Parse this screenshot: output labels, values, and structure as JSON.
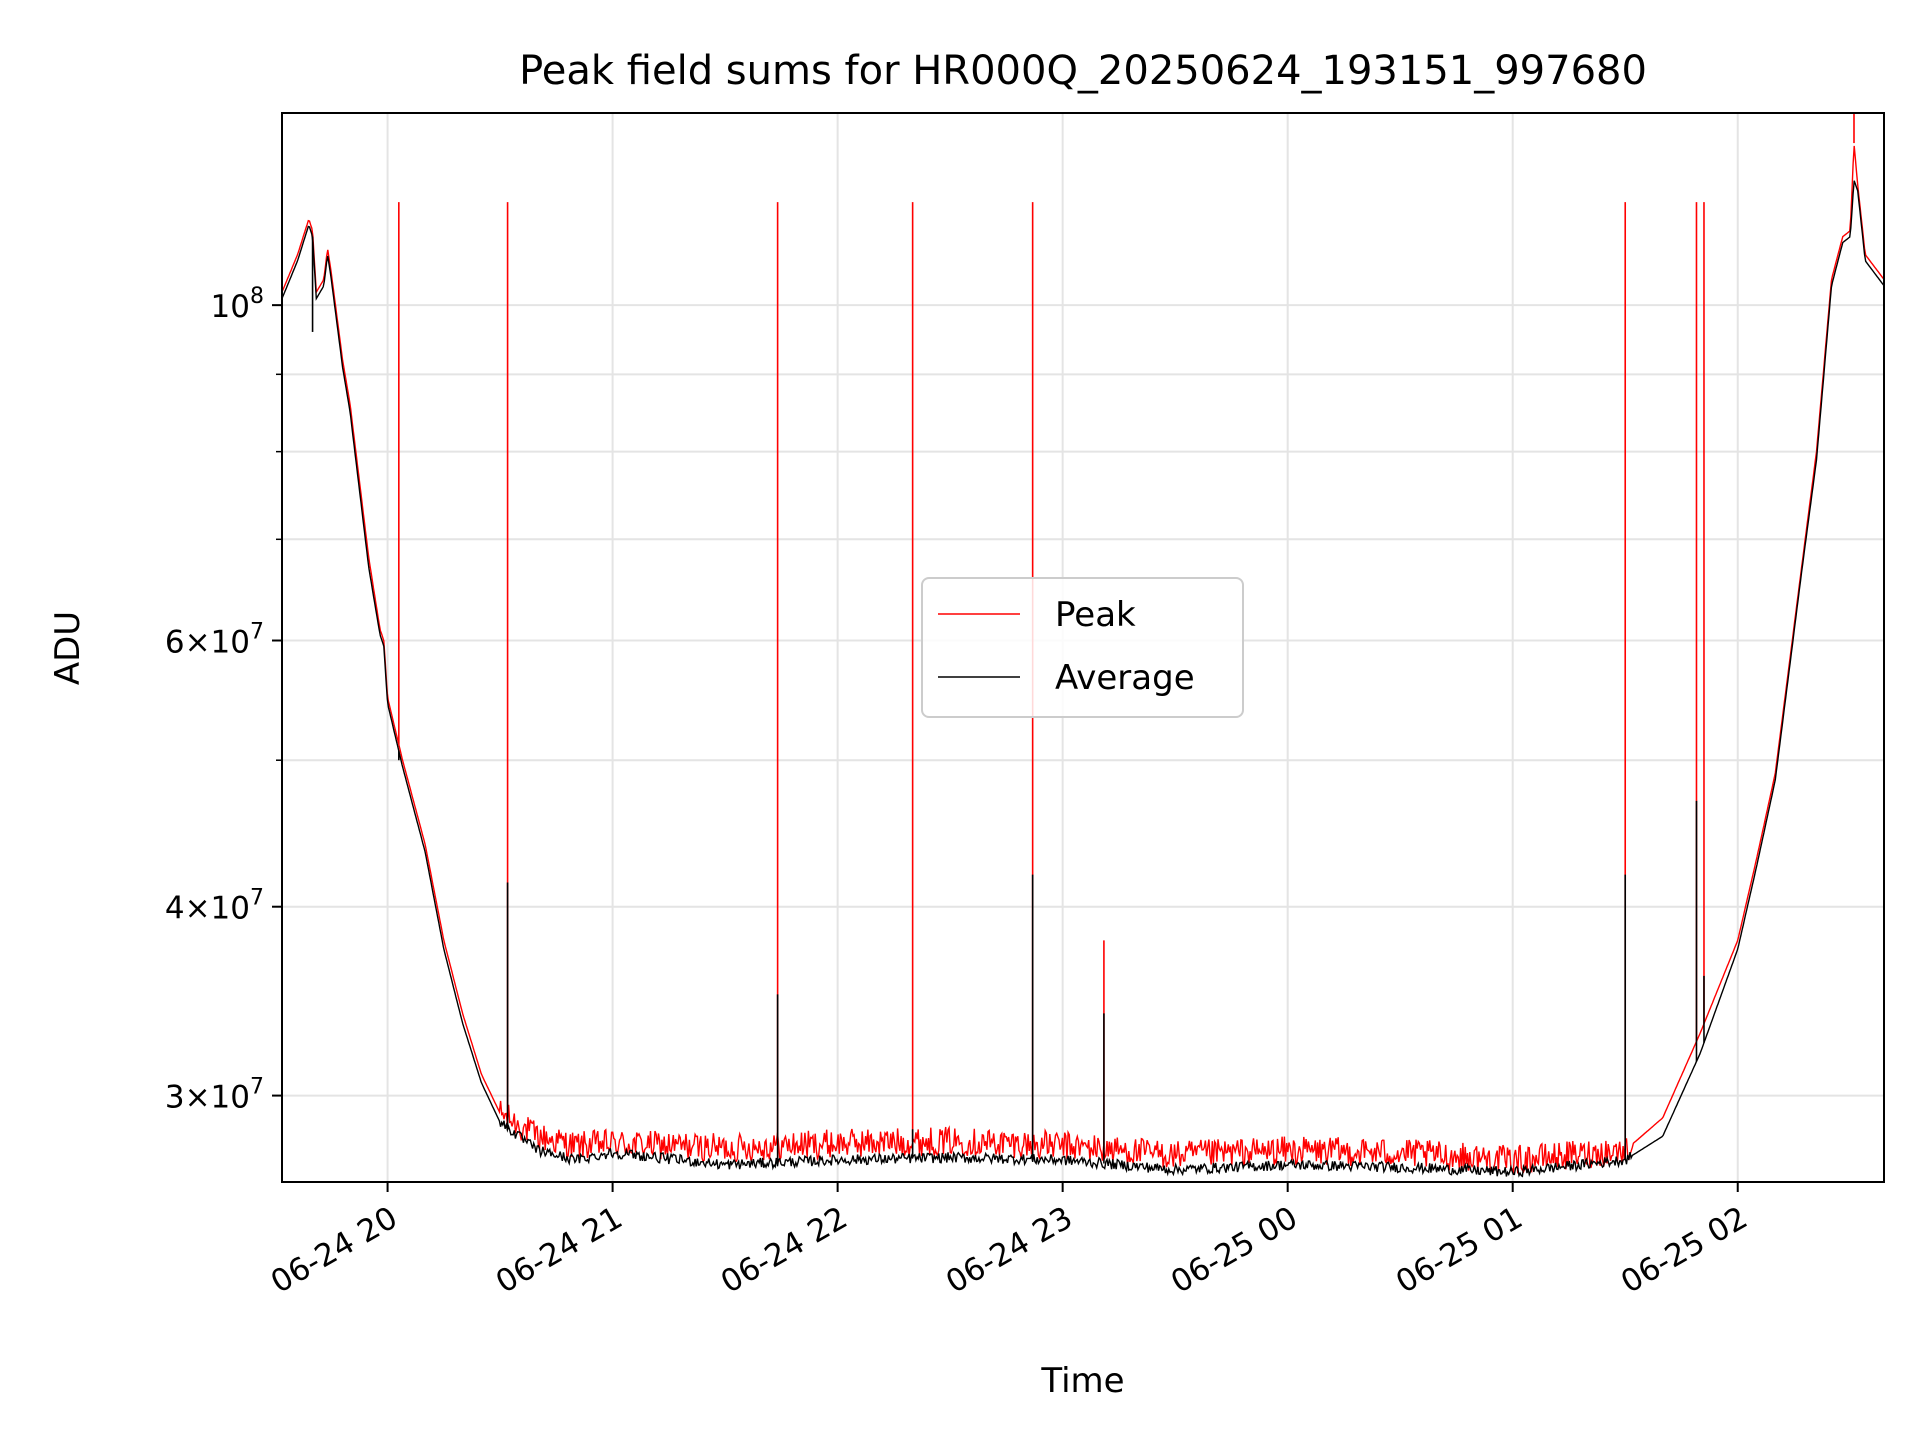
{
  "chart_data": {
    "type": "line",
    "title": "Peak field sums for HR000Q_20250624_193151_997680",
    "xlabel": "Time",
    "ylabel": "ADU",
    "yscale": "log",
    "xlim": [
      "2025-06-24 19:31:51",
      "2025-06-25 02:39"
    ],
    "ylim": [
      26300000,
      134000000
    ],
    "grid": true,
    "legend": "center",
    "x_ticks": [
      {
        "t": "2025-06-24 20:00",
        "label": "06-24 20"
      },
      {
        "t": "2025-06-24 21:00",
        "label": "06-24 21"
      },
      {
        "t": "2025-06-24 22:00",
        "label": "06-24 22"
      },
      {
        "t": "2025-06-24 23:00",
        "label": "06-24 23"
      },
      {
        "t": "2025-06-25 00:00",
        "label": "06-25 00"
      },
      {
        "t": "2025-06-25 01:00",
        "label": "06-25 01"
      },
      {
        "t": "2025-06-25 02:00",
        "label": "06-25 02"
      }
    ],
    "y_ticks": [
      {
        "v": 30000000,
        "base": "3",
        "exp": "7"
      },
      {
        "v": 40000000,
        "base": "4",
        "exp": "7"
      },
      {
        "v": 60000000,
        "base": "6",
        "exp": "7"
      },
      {
        "v": 100000000,
        "base": "",
        "exp": "8"
      }
    ],
    "y_minor": [
      50000000,
      70000000,
      80000000,
      90000000
    ],
    "series": [
      {
        "name": "Peak",
        "color": "#ff0000",
        "points": [
          [
            "2025-06-24 19:31:51",
            102000000
          ],
          [
            "2025-06-24 19:36",
            108000000
          ],
          [
            "2025-06-24 19:39",
            114000000
          ],
          [
            "2025-06-24 19:40",
            112000000
          ],
          [
            "2025-06-24 19:41",
            102000000
          ],
          [
            "2025-06-24 19:43",
            104000000
          ],
          [
            "2025-06-24 19:44",
            109000000
          ],
          [
            "2025-06-24 19:45",
            105000000
          ],
          [
            "2025-06-24 19:48",
            92000000
          ],
          [
            "2025-06-24 19:50",
            86000000
          ],
          [
            "2025-06-24 19:55",
            68000000
          ],
          [
            "2025-06-24 19:58",
            61000000
          ],
          [
            "2025-06-24 19:59",
            60000000
          ],
          [
            "2025-06-24 20:00",
            55000000
          ],
          [
            "2025-06-24 20:04",
            50000000
          ],
          [
            "2025-06-24 20:10",
            44000000
          ],
          [
            "2025-06-24 20:15",
            38000000
          ],
          [
            "2025-06-24 20:20",
            34000000
          ],
          [
            "2025-06-24 20:25",
            31000000
          ],
          [
            "2025-06-24 20:30",
            29200000
          ],
          [
            "2025-06-24 20:40",
            28200000
          ],
          [
            "2025-06-24 20:50",
            27800000
          ],
          [
            "2025-06-24 21:00",
            27900000
          ],
          [
            "2025-06-24 21:30",
            27700000
          ],
          [
            "2025-06-24 22:00",
            27900000
          ],
          [
            "2025-06-24 22:30",
            28000000
          ],
          [
            "2025-06-24 23:00",
            27800000
          ],
          [
            "2025-06-24 23:30",
            27400000
          ],
          [
            "2025-06-25 00:00",
            27600000
          ],
          [
            "2025-06-25 00:30",
            27500000
          ],
          [
            "2025-06-25 01:00",
            27200000
          ],
          [
            "2025-06-25 01:30",
            27600000
          ],
          [
            "2025-06-25 01:40",
            29000000
          ],
          [
            "2025-06-25 01:50",
            33000000
          ],
          [
            "2025-06-25 02:00",
            38000000
          ],
          [
            "2025-06-25 02:05",
            43000000
          ],
          [
            "2025-06-25 02:10",
            49000000
          ],
          [
            "2025-06-25 02:13",
            56000000
          ],
          [
            "2025-06-25 02:17",
            67000000
          ],
          [
            "2025-06-25 02:21",
            80000000
          ],
          [
            "2025-06-25 02:25",
            104000000
          ],
          [
            "2025-06-25 02:28",
            111000000
          ],
          [
            "2025-06-25 02:30",
            112000000
          ],
          [
            "2025-06-25 02:31",
            128000000
          ],
          [
            "2025-06-25 02:32",
            120000000
          ],
          [
            "2025-06-25 02:34",
            108000000
          ],
          [
            "2025-06-25 02:39",
            104000000
          ]
        ],
        "spikes": [
          [
            "2025-06-24 20:03",
            117000000
          ],
          [
            "2025-06-24 20:32",
            117000000
          ],
          [
            "2025-06-24 21:44",
            117000000
          ],
          [
            "2025-06-24 22:20",
            117000000
          ],
          [
            "2025-06-24 22:52",
            117000000
          ],
          [
            "2025-06-24 23:11",
            38000000
          ],
          [
            "2025-06-25 01:30",
            117000000
          ],
          [
            "2025-06-25 01:49",
            117000000
          ],
          [
            "2025-06-25 01:51",
            117000000
          ],
          [
            "2025-06-25 02:31",
            134000000
          ]
        ]
      },
      {
        "name": "Average",
        "color": "#000000",
        "points": [
          [
            "2025-06-24 19:31:51",
            101000000
          ],
          [
            "2025-06-24 19:36",
            107000000
          ],
          [
            "2025-06-24 19:39",
            113000000
          ],
          [
            "2025-06-24 19:40",
            111000000
          ],
          [
            "2025-06-24 19:41",
            101000000
          ],
          [
            "2025-06-24 19:43",
            103000000
          ],
          [
            "2025-06-24 19:44",
            108000000
          ],
          [
            "2025-06-24 19:45",
            104000000
          ],
          [
            "2025-06-24 19:48",
            91000000
          ],
          [
            "2025-06-24 19:50",
            85000000
          ],
          [
            "2025-06-24 19:55",
            67000000
          ],
          [
            "2025-06-24 19:58",
            60500000
          ],
          [
            "2025-06-24 19:59",
            59500000
          ],
          [
            "2025-06-24 20:00",
            54500000
          ],
          [
            "2025-06-24 20:04",
            49500000
          ],
          [
            "2025-06-24 20:10",
            43500000
          ],
          [
            "2025-06-24 20:15",
            37500000
          ],
          [
            "2025-06-24 20:20",
            33500000
          ],
          [
            "2025-06-24 20:25",
            30600000
          ],
          [
            "2025-06-24 20:30",
            28800000
          ],
          [
            "2025-06-24 20:40",
            27600000
          ],
          [
            "2025-06-24 20:50",
            27200000
          ],
          [
            "2025-06-24 21:00",
            27500000
          ],
          [
            "2025-06-24 21:30",
            27000000
          ],
          [
            "2025-06-24 22:00",
            27200000
          ],
          [
            "2025-06-24 22:30",
            27300000
          ],
          [
            "2025-06-24 23:00",
            27200000
          ],
          [
            "2025-06-24 23:30",
            26800000
          ],
          [
            "2025-06-25 00:00",
            27000000
          ],
          [
            "2025-06-25 00:30",
            26900000
          ],
          [
            "2025-06-25 01:00",
            26700000
          ],
          [
            "2025-06-25 01:30",
            27200000
          ],
          [
            "2025-06-25 01:40",
            28200000
          ],
          [
            "2025-06-25 01:50",
            32000000
          ],
          [
            "2025-06-25 02:00",
            37500000
          ],
          [
            "2025-06-25 02:05",
            42500000
          ],
          [
            "2025-06-25 02:10",
            48500000
          ],
          [
            "2025-06-25 02:13",
            55500000
          ],
          [
            "2025-06-25 02:17",
            66500000
          ],
          [
            "2025-06-25 02:21",
            79000000
          ],
          [
            "2025-06-25 02:25",
            103000000
          ],
          [
            "2025-06-25 02:28",
            110000000
          ],
          [
            "2025-06-25 02:30",
            111000000
          ],
          [
            "2025-06-25 02:31",
            121000000
          ],
          [
            "2025-06-25 02:32",
            119000000
          ],
          [
            "2025-06-25 02:34",
            107000000
          ],
          [
            "2025-06-25 02:39",
            103000000
          ]
        ],
        "spikes": [
          [
            "2025-06-24 19:40",
            96000000
          ],
          [
            "2025-06-24 20:03",
            50000000
          ],
          [
            "2025-06-24 20:32",
            41500000
          ],
          [
            "2025-06-24 21:44",
            35000000
          ],
          [
            "2025-06-24 22:20",
            28500000
          ],
          [
            "2025-06-24 22:52",
            42000000
          ],
          [
            "2025-06-24 23:11",
            34000000
          ],
          [
            "2025-06-25 01:30",
            42000000
          ],
          [
            "2025-06-25 01:49",
            47000000
          ],
          [
            "2025-06-25 01:51",
            36000000
          ]
        ]
      }
    ]
  }
}
